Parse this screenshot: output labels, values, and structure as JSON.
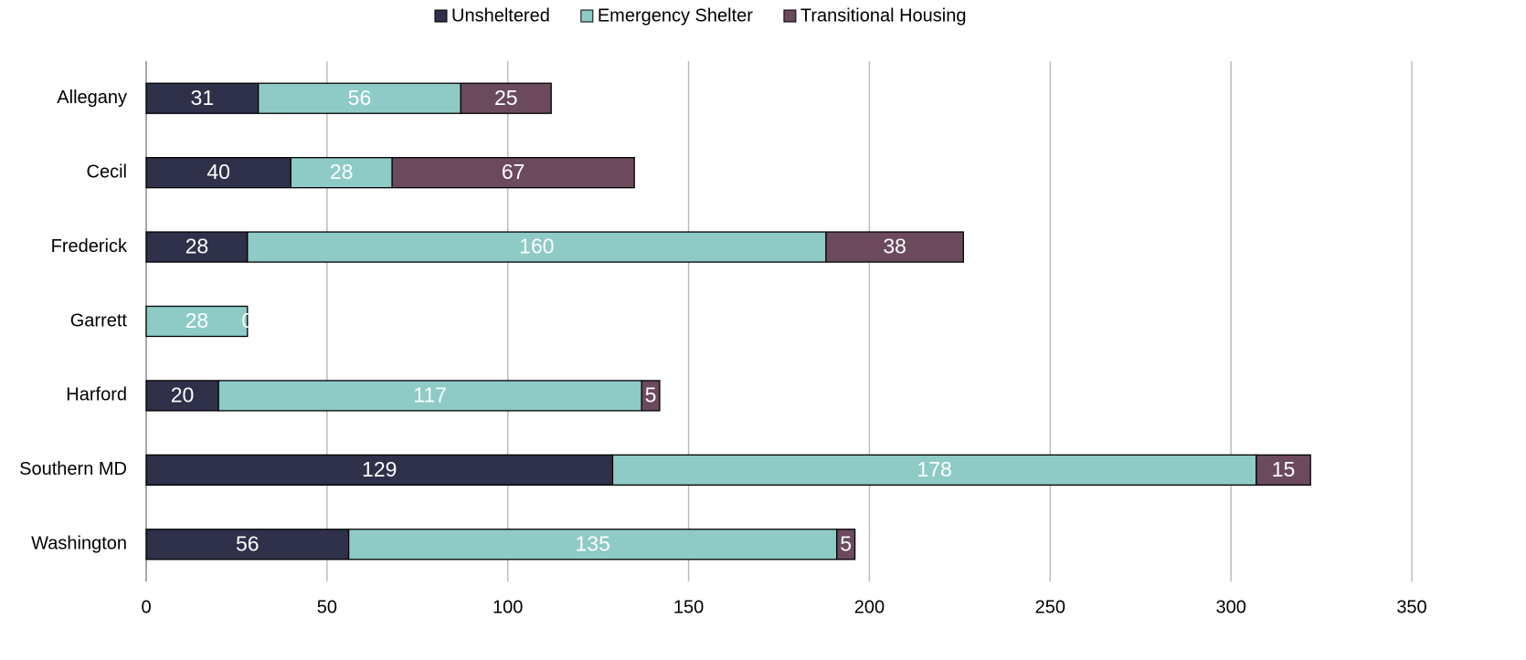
{
  "chart_data": {
    "type": "bar",
    "orientation": "horizontal",
    "stacked": true,
    "categories": [
      "Allegany",
      "Cecil",
      "Frederick",
      "Garrett",
      "Harford",
      "Southern MD",
      "Washington"
    ],
    "series": [
      {
        "name": "Unsheltered",
        "color": "#2f3049",
        "values": [
          31,
          40,
          28,
          0,
          20,
          129,
          56
        ]
      },
      {
        "name": "Emergency Shelter",
        "color": "#8ecac6",
        "values": [
          56,
          28,
          160,
          28,
          117,
          178,
          135
        ]
      },
      {
        "name": "Transitional Housing",
        "color": "#6b4a5e",
        "values": [
          25,
          67,
          38,
          0,
          5,
          15,
          5
        ]
      }
    ],
    "xlim": [
      0,
      350
    ],
    "xticks": [
      0,
      50,
      100,
      150,
      200,
      250,
      300,
      350
    ],
    "grid": true,
    "legend": "top"
  }
}
